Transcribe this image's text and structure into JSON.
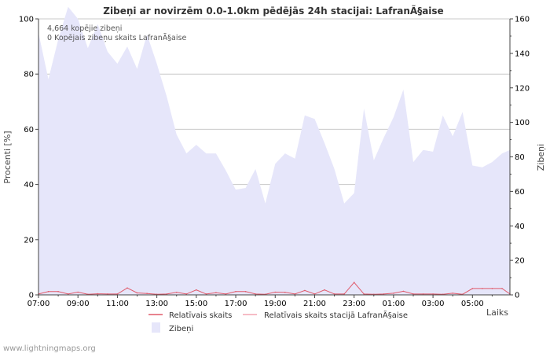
{
  "chart_data": {
    "type": "area",
    "title": "Zibeņi ar novirzēm 0.0-1.0km pēdējās 24h stacijai: LafranÃ§aise",
    "xlabel": "Laiks",
    "ylabel_left": "Procenti   [%]",
    "ylabel_right": "Zibeņi",
    "annotations": [
      "4,664 kopējie zibeņi",
      "0 Kopējais zibeņu skaits LafranÃ§aise"
    ],
    "x_ticks": [
      "07:00",
      "09:00",
      "11:00",
      "13:00",
      "15:00",
      "17:00",
      "19:00",
      "21:00",
      "23:00",
      "01:00",
      "03:00",
      "05:00"
    ],
    "ylim_left": [
      0,
      100
    ],
    "y_ticks_left": [
      0,
      20,
      40,
      60,
      80,
      100
    ],
    "ylim_right": [
      0,
      160
    ],
    "y_ticks_right": [
      0,
      20,
      40,
      60,
      80,
      100,
      120,
      140,
      160
    ],
    "x_start_hour": 7,
    "x_span_hours": 23.9,
    "series": [
      {
        "name": "Zibeņi",
        "axis": "right",
        "kind": "area",
        "color": "#e6e6fa",
        "times": [
          7.0,
          7.5,
          8.0,
          8.5,
          9.0,
          9.5,
          10.0,
          10.5,
          11.0,
          11.5,
          12.0,
          12.5,
          13.0,
          13.5,
          14.0,
          14.5,
          15.0,
          15.5,
          16.0,
          16.5,
          17.0,
          17.5,
          18.0,
          18.5,
          19.0,
          19.5,
          20.0,
          20.5,
          21.0,
          21.5,
          22.0,
          22.5,
          23.0,
          23.5,
          24.0,
          24.5,
          25.0,
          25.5,
          26.0,
          26.5,
          27.0,
          27.5,
          28.0,
          28.5,
          29.0,
          29.5,
          30.0,
          30.5,
          30.9
        ],
        "values": [
          152,
          125,
          148,
          167,
          160,
          143,
          157,
          141,
          134,
          144,
          131,
          151,
          134,
          115,
          93,
          82,
          87,
          82,
          82,
          72,
          61,
          62,
          73,
          53,
          76,
          82,
          79,
          104,
          102,
          88,
          73,
          53,
          59,
          108,
          78,
          91,
          103,
          119,
          77,
          84,
          83,
          104,
          92,
          106,
          75,
          74,
          77,
          82,
          84
        ]
      },
      {
        "name": "Relatīvais skaits",
        "axis": "left",
        "kind": "line",
        "color": "#e05a6a",
        "times": [
          7.0,
          7.5,
          8.0,
          8.5,
          9.0,
          9.5,
          10.0,
          10.5,
          11.0,
          11.5,
          12.0,
          12.5,
          13.0,
          13.5,
          14.0,
          14.5,
          15.0,
          15.5,
          16.0,
          16.5,
          17.0,
          17.5,
          18.0,
          18.5,
          19.0,
          19.5,
          20.0,
          20.5,
          21.0,
          21.5,
          22.0,
          22.5,
          23.0,
          23.5,
          24.0,
          24.5,
          25.0,
          25.5,
          26.0,
          26.5,
          27.0,
          27.5,
          28.0,
          28.5,
          29.0,
          29.5,
          30.0,
          30.5,
          30.9
        ],
        "values": [
          0.3,
          1.2,
          1.2,
          0.3,
          1.0,
          0.2,
          0.4,
          0.3,
          0.3,
          2.5,
          0.7,
          0.5,
          0.2,
          0.3,
          0.9,
          0.3,
          1.8,
          0.3,
          0.8,
          0.3,
          1.2,
          1.2,
          0.3,
          0.2,
          1.0,
          0.9,
          0.3,
          1.6,
          0.3,
          1.8,
          0.3,
          0.3,
          4.5,
          0.3,
          0.2,
          0.3,
          0.6,
          1.3,
          0.3,
          0.3,
          0.3,
          0.2,
          0.6,
          0.2,
          2.3,
          2.3,
          2.3,
          2.3,
          0.3
        ]
      },
      {
        "name": "Relatīvais skaits stacijā LafranÃ§aise",
        "axis": "left",
        "kind": "line",
        "color": "#f4a6b4",
        "values": []
      }
    ]
  },
  "legend": {
    "item1": "Relatīvais skaits",
    "item2": "Relatīvais skaits stacijā LafranÃ§aise",
    "item3": "Zibeņi"
  },
  "footer": "www.lightningmaps.org"
}
